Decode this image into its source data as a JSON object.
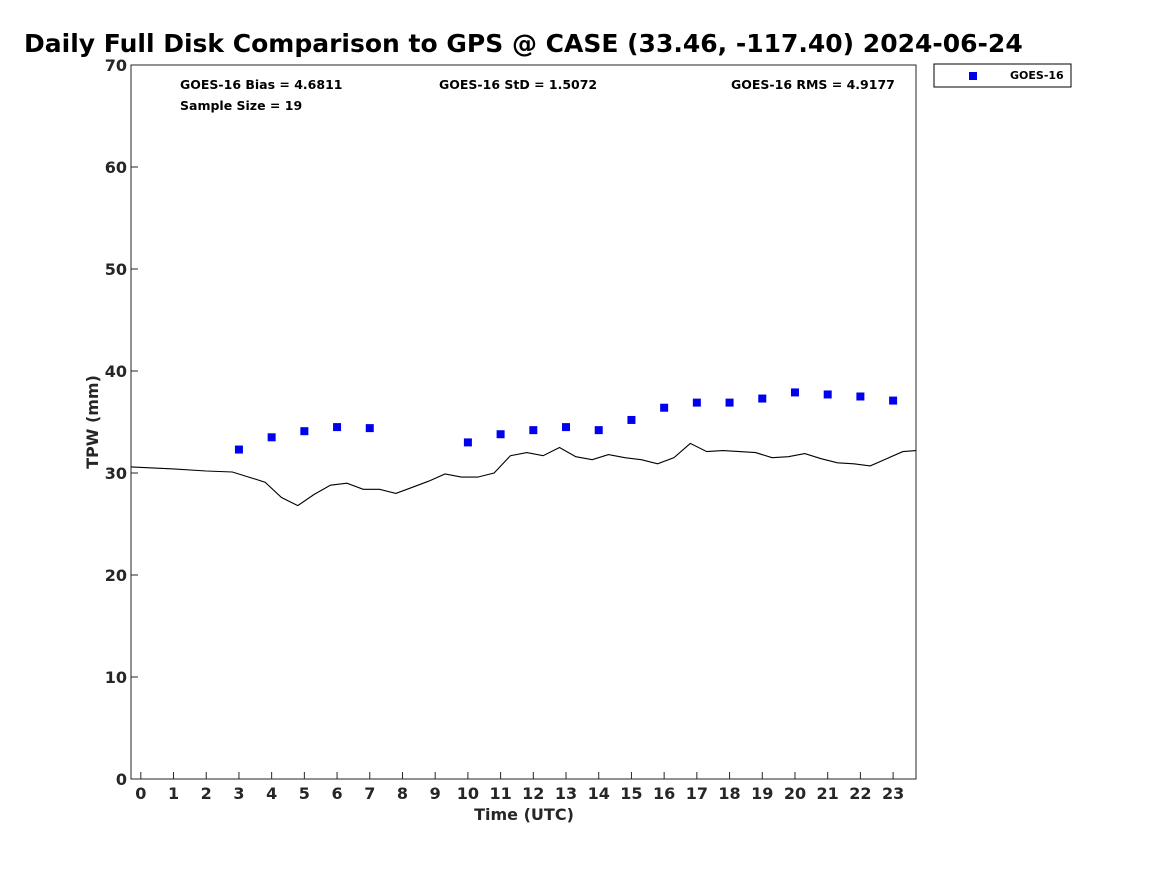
{
  "chart_data": {
    "type": "scatter",
    "title": "Daily Full Disk Comparison to GPS @ CASE (33.46, -117.40) 2024-06-24",
    "xlabel": "Time (UTC)",
    "ylabel": "TPW (mm)",
    "xlim": [
      -0.3,
      23.7
    ],
    "ylim": [
      0,
      70
    ],
    "x_ticks": [
      0,
      1,
      2,
      3,
      4,
      5,
      6,
      7,
      8,
      9,
      10,
      11,
      12,
      13,
      14,
      15,
      16,
      17,
      18,
      19,
      20,
      21,
      22,
      23
    ],
    "y_ticks": [
      0,
      10,
      20,
      30,
      40,
      50,
      60,
      70
    ],
    "grid": false,
    "legend_position": "top-right, outside",
    "stats": {
      "bias": "GOES-16 Bias = 4.6811",
      "std": "GOES-16 StD = 1.5072",
      "rms": "GOES-16 RMS = 4.9177",
      "sample": "Sample Size = 19"
    },
    "series": [
      {
        "name": "GOES-16",
        "kind": "scatter",
        "marker": "square",
        "color": "#0000ee",
        "x": [
          3,
          4,
          5,
          6,
          7,
          10,
          11,
          12,
          13,
          14,
          15,
          16,
          17,
          18,
          19,
          20,
          21,
          22,
          23
        ],
        "y": [
          32.3,
          33.5,
          34.1,
          34.5,
          34.4,
          33.0,
          33.8,
          34.2,
          34.5,
          34.2,
          35.2,
          36.4,
          36.9,
          36.9,
          37.3,
          37.9,
          37.7,
          37.5,
          37.1
        ]
      },
      {
        "kind": "line",
        "color": "#000000",
        "x": [
          -0.3,
          1.0,
          2.0,
          2.8,
          3.3,
          3.8,
          4.3,
          4.8,
          5.3,
          5.8,
          6.3,
          6.8,
          7.3,
          7.8,
          8.3,
          8.8,
          9.3,
          9.8,
          10.3,
          10.8,
          11.3,
          11.8,
          12.3,
          12.8,
          13.3,
          13.8,
          14.3,
          14.8,
          15.3,
          15.8,
          16.3,
          16.8,
          17.3,
          17.8,
          18.3,
          18.8,
          19.3,
          19.8,
          20.3,
          20.8,
          21.3,
          21.8,
          22.3,
          22.8,
          23.3,
          23.7
        ],
        "y": [
          30.6,
          30.4,
          30.2,
          30.1,
          29.6,
          29.1,
          27.6,
          26.8,
          27.9,
          28.8,
          29.0,
          28.4,
          28.4,
          28.0,
          28.6,
          29.2,
          29.9,
          29.6,
          29.6,
          30.0,
          31.7,
          32.0,
          31.7,
          32.5,
          31.6,
          31.3,
          31.8,
          31.5,
          31.3,
          30.9,
          31.5,
          32.9,
          32.1,
          32.2,
          32.1,
          32.0,
          31.5,
          31.6,
          31.9,
          31.4,
          31.0,
          30.9,
          30.7,
          31.4,
          32.1,
          32.2
        ]
      }
    ]
  }
}
